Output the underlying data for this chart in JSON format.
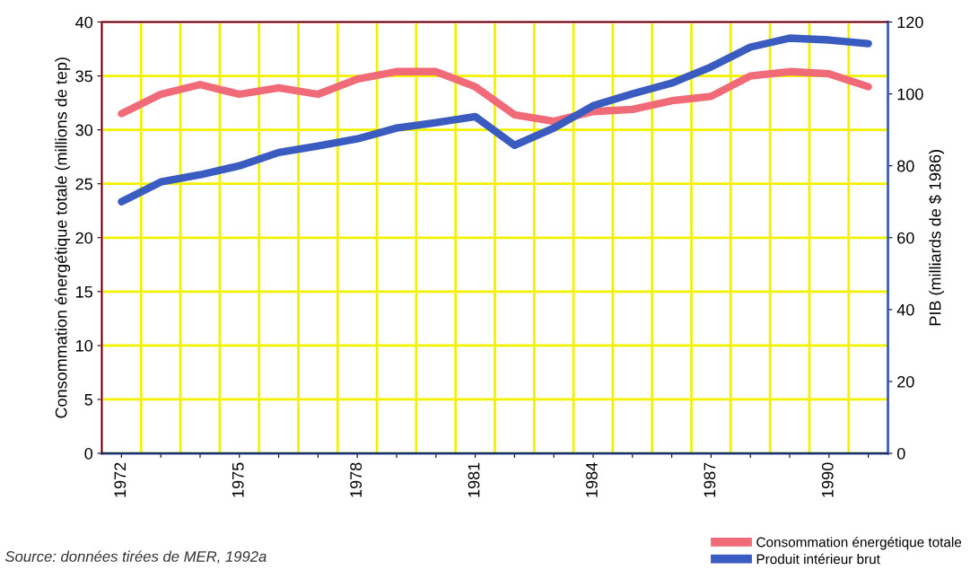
{
  "chart_data": {
    "type": "line",
    "categories": [
      "1972",
      null,
      null,
      "1975",
      null,
      null,
      "1978",
      null,
      null,
      "1981",
      null,
      null,
      "1984",
      null,
      null,
      "1987",
      null,
      null,
      "1990",
      null
    ],
    "series": [
      {
        "name": "Consommation énergétique totale",
        "color": "#f06a78",
        "values": [
          31.5,
          33.3,
          34.2,
          33.3,
          33.9,
          33.3,
          34.7,
          35.4,
          35.4,
          34.0,
          31.4,
          30.8,
          31.7,
          31.9,
          32.7,
          33.1,
          35.0,
          35.4,
          35.2,
          34.0
        ]
      },
      {
        "name": "Produit intérieur brut",
        "color": "#3a5cc0",
        "axis": "y2",
        "values": [
          70,
          75.5,
          77.5,
          80,
          83.7,
          85.5,
          87.5,
          90.5,
          92,
          93.7,
          85.7,
          90.5,
          96.7,
          100,
          103,
          107.5,
          113,
          115.5,
          115,
          114
        ]
      }
    ],
    "ylabel": "Consommation énergétique totale (millions de tep)",
    "y2label": "PIB (milliards de $ 1986)",
    "ylim": [
      0,
      40
    ],
    "yticks": [
      0,
      5,
      10,
      15,
      20,
      25,
      30,
      35,
      40
    ],
    "y2lim": [
      0,
      120
    ],
    "y2ticks": [
      0,
      20,
      40,
      60,
      80,
      100,
      120
    ],
    "grid": true,
    "legend": "bottom right",
    "annotations": [
      "Source: données tirées de MER, 1992a"
    ]
  }
}
